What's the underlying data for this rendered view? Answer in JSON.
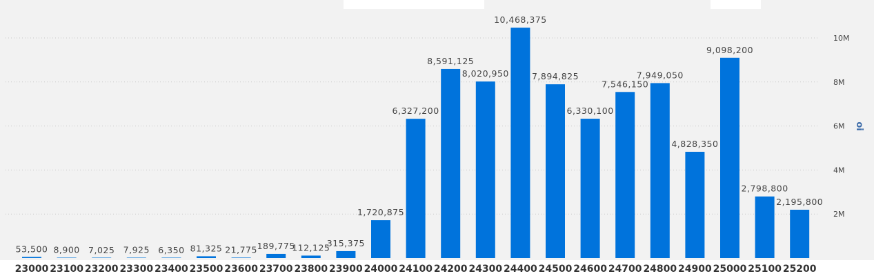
{
  "chart_data": {
    "type": "bar",
    "categories": [
      "23000",
      "23100",
      "23200",
      "23300",
      "23400",
      "23500",
      "23600",
      "23700",
      "23800",
      "23900",
      "24000",
      "24100",
      "24200",
      "24300",
      "24400",
      "24500",
      "24600",
      "24700",
      "24800",
      "24900",
      "25000",
      "25100",
      "25200"
    ],
    "values": [
      53500,
      8900,
      7025,
      7925,
      6350,
      81325,
      21775,
      189775,
      112125,
      315375,
      1720875,
      6327200,
      8591125,
      8020950,
      10468375,
      7894825,
      6330100,
      7546150,
      7949050,
      4828350,
      9098200,
      2798800,
      2195800
    ],
    "value_labels": [
      "53,500",
      "8,900",
      "7,025",
      "7,925",
      "6,350",
      "81,325",
      "21,775",
      "189,775",
      "112,125",
      "315,375",
      "1,720,875",
      "6,327,200",
      "8,591,125",
      "8,020,950",
      "10,468,375",
      "7,894,825",
      "6,330,100",
      "7,546,150",
      "7,949,050",
      "4,828,350",
      "9,098,200",
      "2,798,800",
      "2,195,800"
    ],
    "y_ticks": [
      2000000,
      4000000,
      6000000,
      8000000,
      10000000
    ],
    "y_tick_labels": [
      "2M",
      "4M",
      "6M",
      "8M",
      "10M"
    ],
    "ylabel": "oi",
    "y_axis_position": "right",
    "ylim": [
      0,
      11000000
    ],
    "grid": true,
    "colors": {
      "bar": "#0073dc",
      "grid": "#c8c8c8",
      "background": "#f2f2f2"
    }
  }
}
